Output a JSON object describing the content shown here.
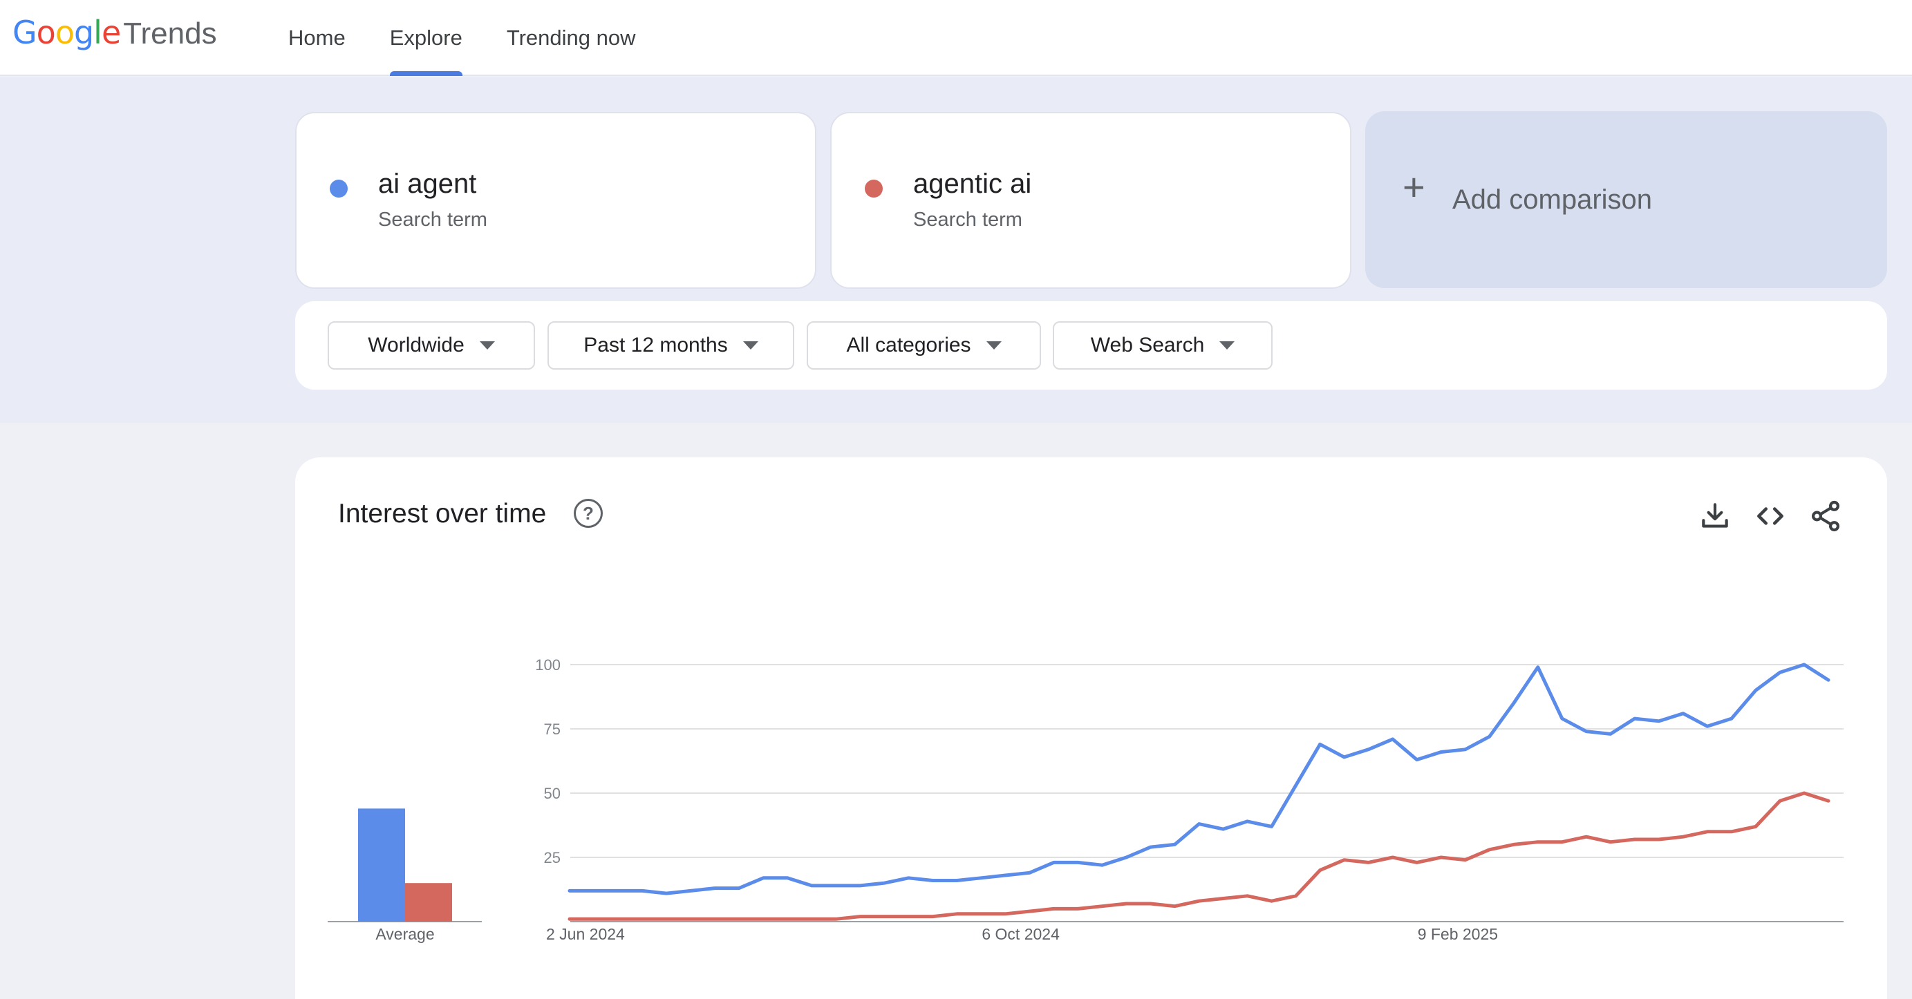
{
  "header": {
    "logo": {
      "letters": [
        {
          "char": "G",
          "color": "#4285F4"
        },
        {
          "char": "o",
          "color": "#EA4335"
        },
        {
          "char": "o",
          "color": "#FBBC05"
        },
        {
          "char": "g",
          "color": "#4285F4"
        },
        {
          "char": "l",
          "color": "#34A853"
        },
        {
          "char": "e",
          "color": "#EA4335"
        }
      ],
      "product": "Trends"
    },
    "nav": [
      {
        "label": "Home",
        "active": false
      },
      {
        "label": "Explore",
        "active": true
      },
      {
        "label": "Trending now",
        "active": false
      }
    ]
  },
  "terms": [
    {
      "name": "ai agent",
      "subtitle": "Search term",
      "color": "#5b8ce9"
    },
    {
      "name": "agentic ai",
      "subtitle": "Search term",
      "color": "#d4685e"
    }
  ],
  "add_comparison": {
    "label": "Add comparison"
  },
  "filters": [
    {
      "label": "Worldwide"
    },
    {
      "label": "Past 12 months"
    },
    {
      "label": "All categories"
    },
    {
      "label": "Web Search"
    }
  ],
  "interest_card": {
    "title": "Interest over time",
    "icons": [
      "help-icon",
      "download-icon",
      "embed-code-icon",
      "share-icon"
    ]
  },
  "chart_data": {
    "type": "line",
    "yticks": [
      25,
      50,
      75,
      100
    ],
    "ylim": [
      0,
      100
    ],
    "xtick_labels": [
      "2 Jun 2024",
      "6 Oct 2024",
      "9 Feb 2025"
    ],
    "xtick_positions": [
      0,
      18,
      36
    ],
    "grid": true,
    "average": {
      "label": "Average",
      "values": [
        44,
        15
      ]
    },
    "series": [
      {
        "name": "ai agent",
        "color": "#5b8ce9",
        "values": [
          12,
          12,
          12,
          12,
          11,
          12,
          13,
          13,
          17,
          17,
          14,
          14,
          14,
          15,
          17,
          16,
          16,
          17,
          18,
          19,
          23,
          23,
          22,
          25,
          29,
          30,
          38,
          36,
          39,
          37,
          53,
          69,
          64,
          67,
          71,
          63,
          66,
          67,
          72,
          85,
          99,
          79,
          74,
          73,
          79,
          78,
          81,
          76,
          79,
          90,
          97,
          100,
          94
        ]
      },
      {
        "name": "agentic ai",
        "color": "#d4685e",
        "values": [
          1,
          1,
          1,
          1,
          1,
          1,
          1,
          1,
          1,
          1,
          1,
          1,
          2,
          2,
          2,
          2,
          3,
          3,
          3,
          4,
          5,
          5,
          6,
          7,
          7,
          6,
          8,
          9,
          10,
          8,
          10,
          20,
          24,
          23,
          25,
          23,
          25,
          24,
          28,
          30,
          31,
          31,
          33,
          31,
          32,
          32,
          33,
          35,
          35,
          37,
          47,
          50,
          47
        ]
      }
    ]
  }
}
